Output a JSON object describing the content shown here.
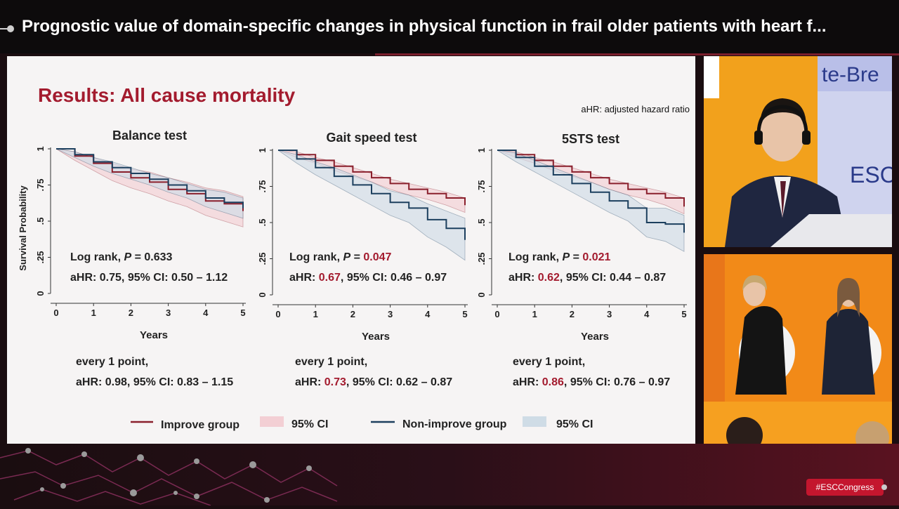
{
  "header": {
    "title": "Prognostic value of domain-specific changes in physical function in frail older patients with heart f..."
  },
  "slide": {
    "heading": "Results: All cause mortality",
    "note": "aHR: adjusted hazard ratio",
    "ylabel": "Survival Probability",
    "legend": {
      "improve": "Improve group",
      "improve_ci": "95% CI",
      "nonimprove": "Non-improve group",
      "nonimprove_ci": "95% CI"
    }
  },
  "colors": {
    "improve": "#8a1f2c",
    "improve_ci": "#f3cfd4",
    "nonimprove": "#1c3f5e",
    "nonimprove_ci": "#cfdce6",
    "accent": "#a31b2e"
  },
  "chart_data": [
    {
      "type": "line",
      "title": "Balance test",
      "xlabel": "Years",
      "ylabel": "Survival Probability",
      "xlim": [
        0,
        5
      ],
      "ylim": [
        0,
        1
      ],
      "xticks": [
        "0",
        "1",
        "2",
        "3",
        "4",
        "5"
      ],
      "yticks": [
        "0",
        ".25",
        ".5",
        ".75",
        "1"
      ],
      "series": [
        {
          "name": "Improve group",
          "x": [
            0,
            0.5,
            1,
            1.5,
            2,
            2.5,
            3,
            3.5,
            4,
            4.5,
            5
          ],
          "y": [
            1,
            0.95,
            0.9,
            0.84,
            0.8,
            0.77,
            0.72,
            0.69,
            0.64,
            0.62,
            0.57
          ],
          "ci_low": [
            1,
            0.92,
            0.85,
            0.78,
            0.73,
            0.69,
            0.64,
            0.6,
            0.54,
            0.5,
            0.46
          ],
          "ci_high": [
            1,
            0.98,
            0.94,
            0.9,
            0.86,
            0.84,
            0.8,
            0.77,
            0.73,
            0.71,
            0.67
          ]
        },
        {
          "name": "Non-improve group",
          "x": [
            0,
            0.5,
            1,
            1.5,
            2,
            2.5,
            3,
            3.5,
            4,
            4.5,
            5
          ],
          "y": [
            1,
            0.96,
            0.91,
            0.87,
            0.83,
            0.79,
            0.75,
            0.71,
            0.66,
            0.63,
            0.59
          ],
          "ci_low": [
            1,
            0.94,
            0.88,
            0.83,
            0.79,
            0.75,
            0.7,
            0.66,
            0.6,
            0.56,
            0.52
          ],
          "ci_high": [
            1,
            0.98,
            0.94,
            0.91,
            0.87,
            0.83,
            0.8,
            0.76,
            0.72,
            0.7,
            0.66
          ]
        }
      ],
      "stats": {
        "logrank_label": "Log rank, ",
        "p_label": "P",
        "p_eq": " = ",
        "p_value": "0.633",
        "p_sig": false,
        "ahr_label": "aHR: ",
        "ahr_value": "0.75",
        "ahr_sig": false,
        "ci_text": ", 95% CI: 0.50 – 1.12",
        "per_point": "every 1 point,",
        "pp_ahr_label": "aHR: ",
        "pp_ahr_value": "0.98",
        "pp_sig": false,
        "pp_ci_text": ", 95% CI: 0.83 – 1.15"
      }
    },
    {
      "type": "line",
      "title": "Gait speed test",
      "xlabel": "Years",
      "ylabel": "",
      "xlim": [
        0,
        5
      ],
      "ylim": [
        0,
        1
      ],
      "xticks": [
        "0",
        "1",
        "2",
        "3",
        "4",
        "5"
      ],
      "yticks": [
        "0",
        ".25",
        ".5",
        ".75",
        "1"
      ],
      "series": [
        {
          "name": "Improve group",
          "x": [
            0,
            0.5,
            1,
            1.5,
            2,
            2.5,
            3,
            3.5,
            4,
            4.5,
            5
          ],
          "y": [
            1,
            0.97,
            0.93,
            0.89,
            0.85,
            0.81,
            0.77,
            0.73,
            0.7,
            0.67,
            0.62
          ],
          "ci_low": [
            1,
            0.95,
            0.91,
            0.86,
            0.82,
            0.78,
            0.73,
            0.69,
            0.66,
            0.62,
            0.57
          ],
          "ci_high": [
            1,
            0.99,
            0.95,
            0.92,
            0.88,
            0.84,
            0.8,
            0.77,
            0.74,
            0.71,
            0.67
          ]
        },
        {
          "name": "Non-improve group",
          "x": [
            0,
            0.5,
            1,
            1.5,
            2,
            2.5,
            3,
            3.5,
            4,
            4.5,
            5
          ],
          "y": [
            1,
            0.94,
            0.88,
            0.82,
            0.76,
            0.7,
            0.64,
            0.6,
            0.52,
            0.46,
            0.38
          ],
          "ci_low": [
            1,
            0.91,
            0.83,
            0.76,
            0.69,
            0.62,
            0.55,
            0.5,
            0.4,
            0.33,
            0.24
          ],
          "ci_high": [
            1,
            0.97,
            0.92,
            0.88,
            0.83,
            0.78,
            0.72,
            0.69,
            0.63,
            0.58,
            0.53
          ]
        }
      ],
      "stats": {
        "logrank_label": "Log rank, ",
        "p_label": "P",
        "p_eq": " = ",
        "p_value": "0.047",
        "p_sig": true,
        "ahr_label": "aHR: ",
        "ahr_value": "0.67",
        "ahr_sig": true,
        "ci_text": ", 95% CI: 0.46 – 0.97",
        "per_point": "every 1 point,",
        "pp_ahr_label": "aHR: ",
        "pp_ahr_value": "0.73",
        "pp_sig": true,
        "pp_ci_text": ", 95% CI: 0.62 – 0.87"
      }
    },
    {
      "type": "line",
      "title": "5STS test",
      "xlabel": "Years",
      "ylabel": "",
      "xlim": [
        0,
        5
      ],
      "ylim": [
        0,
        1
      ],
      "xticks": [
        "0",
        "1",
        "2",
        "3",
        "4",
        "5"
      ],
      "yticks": [
        "0",
        ".25",
        ".5",
        ".75",
        "1"
      ],
      "series": [
        {
          "name": "Improve group",
          "x": [
            0,
            0.5,
            1,
            1.5,
            2,
            2.5,
            3,
            3.5,
            4,
            4.5,
            5
          ],
          "y": [
            1,
            0.97,
            0.93,
            0.89,
            0.85,
            0.81,
            0.77,
            0.73,
            0.7,
            0.67,
            0.61
          ],
          "ci_low": [
            1,
            0.95,
            0.91,
            0.86,
            0.82,
            0.78,
            0.73,
            0.69,
            0.66,
            0.62,
            0.56
          ],
          "ci_high": [
            1,
            0.99,
            0.95,
            0.92,
            0.88,
            0.84,
            0.8,
            0.77,
            0.74,
            0.71,
            0.67
          ]
        },
        {
          "name": "Non-improve group",
          "x": [
            0,
            0.5,
            1,
            1.5,
            2,
            2.5,
            3,
            3.5,
            4,
            4.5,
            5
          ],
          "y": [
            1,
            0.95,
            0.89,
            0.83,
            0.77,
            0.71,
            0.65,
            0.6,
            0.5,
            0.49,
            0.43
          ],
          "ci_low": [
            1,
            0.92,
            0.85,
            0.78,
            0.71,
            0.64,
            0.57,
            0.51,
            0.4,
            0.37,
            0.3
          ],
          "ci_high": [
            1,
            0.98,
            0.93,
            0.88,
            0.83,
            0.78,
            0.73,
            0.69,
            0.6,
            0.6,
            0.55
          ]
        }
      ],
      "stats": {
        "logrank_label": "Log rank, ",
        "p_label": "P",
        "p_eq": " = ",
        "p_value": "0.021",
        "p_sig": true,
        "ahr_label": "aHR: ",
        "ahr_value": "0.62",
        "ahr_sig": true,
        "ci_text": ", 95% CI: 0.44 – 0.87",
        "per_point": "every 1 point,",
        "pp_ahr_label": "aHR: ",
        "pp_ahr_value": "0.86",
        "pp_sig": true,
        "pp_ci_text": ", 95% CI: 0.76 – 0.97"
      }
    }
  ],
  "footer": {
    "hashtag": "#ESCCongress"
  }
}
